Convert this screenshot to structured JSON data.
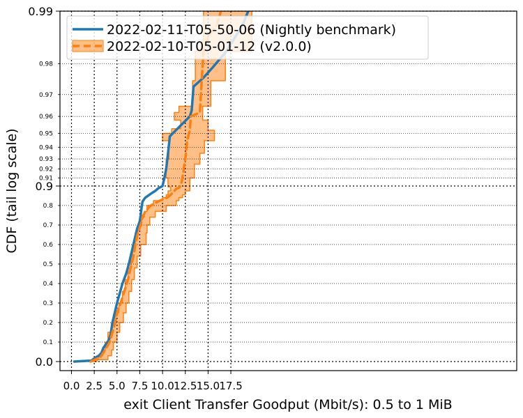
{
  "chart_data": {
    "type": "line",
    "xlabel": "exit Client Transfer Goodput (Mbit/s): 0.5 to 1 MiB",
    "ylabel": "CDF (tail log scale)",
    "xlim": [
      -0.4,
      19.8
    ],
    "x_ticks": [
      0.0,
      2.5,
      5.0,
      7.5,
      10.0,
      12.5,
      15.0,
      17.5
    ],
    "x_tick_labels": [
      "0.0",
      "2.5",
      "5.0",
      "7.5",
      "10.0",
      "12.5",
      "15.0",
      "17.5"
    ],
    "y_scale": "tail-log (linear below 0.9, logit-like above 0.9)",
    "ylim": [
      -0.02,
      0.99
    ],
    "y_major_ticks": [
      0.0,
      0.9,
      0.99
    ],
    "y_major_tick_labels": [
      "0.0",
      "0.9",
      "0.99"
    ],
    "y_minor_ticks": [
      0.1,
      0.2,
      0.3,
      0.4,
      0.5,
      0.6,
      0.7,
      0.8,
      0.91,
      0.92,
      0.93,
      0.94,
      0.95,
      0.96,
      0.97,
      0.98
    ],
    "y_minor_tick_labels": [
      "0.1",
      "0.2",
      "0.3",
      "0.4",
      "0.5",
      "0.6",
      "0.7",
      "0.8",
      "0.91",
      "0.92",
      "0.93",
      "0.94",
      "0.95",
      "0.96",
      "0.97",
      "0.98"
    ],
    "grid": "dotted, at x major ticks and all y ticks",
    "legend": "top-left",
    "series": [
      {
        "name": "2022-02-11-T05-50-06 (Nightly benchmark)",
        "color": "#1f77b4",
        "style": "solid",
        "points": [
          [
            0.3,
            0.0
          ],
          [
            2.2,
            0.005
          ],
          [
            2.6,
            0.02
          ],
          [
            3.0,
            0.03
          ],
          [
            3.3,
            0.045
          ],
          [
            3.5,
            0.07
          ],
          [
            3.8,
            0.09
          ],
          [
            4.1,
            0.11
          ],
          [
            4.3,
            0.14
          ],
          [
            4.5,
            0.2
          ],
          [
            4.7,
            0.24
          ],
          [
            5.0,
            0.3
          ],
          [
            5.3,
            0.35
          ],
          [
            5.6,
            0.4
          ],
          [
            6.0,
            0.45
          ],
          [
            6.3,
            0.5
          ],
          [
            6.6,
            0.56
          ],
          [
            6.8,
            0.6
          ],
          [
            7.0,
            0.64
          ],
          [
            7.2,
            0.68
          ],
          [
            7.5,
            0.72
          ],
          [
            7.6,
            0.75
          ],
          [
            7.7,
            0.79
          ],
          [
            7.8,
            0.82
          ],
          [
            8.1,
            0.84
          ],
          [
            8.7,
            0.86
          ],
          [
            9.2,
            0.875
          ],
          [
            9.5,
            0.887
          ],
          [
            9.8,
            0.895
          ],
          [
            10.0,
            0.9
          ],
          [
            10.2,
            0.91
          ],
          [
            10.4,
            0.92
          ],
          [
            10.6,
            0.935
          ],
          [
            10.8,
            0.948
          ],
          [
            12.0,
            0.955
          ],
          [
            13.0,
            0.96
          ],
          [
            13.2,
            0.963
          ],
          [
            13.4,
            0.973
          ],
          [
            14.5,
            0.976
          ],
          [
            15.5,
            0.979
          ],
          [
            17.0,
            0.983
          ],
          [
            18.0,
            0.986
          ],
          [
            18.8,
            0.988
          ],
          [
            19.4,
            0.99
          ]
        ]
      },
      {
        "name": "2022-02-10-T05-01-12 (v2.0.0)",
        "color": "#ff7f0e",
        "style": "dashed",
        "points": [
          [
            2.1,
            0.0
          ],
          [
            2.6,
            0.01
          ],
          [
            3.2,
            0.025
          ],
          [
            3.7,
            0.06
          ],
          [
            4.2,
            0.1
          ],
          [
            4.5,
            0.15
          ],
          [
            4.8,
            0.2
          ],
          [
            5.0,
            0.25
          ],
          [
            5.4,
            0.3
          ],
          [
            5.8,
            0.36
          ],
          [
            6.2,
            0.42
          ],
          [
            6.5,
            0.48
          ],
          [
            6.8,
            0.54
          ],
          [
            7.1,
            0.62
          ],
          [
            7.3,
            0.66
          ],
          [
            7.6,
            0.7
          ],
          [
            7.8,
            0.74
          ],
          [
            8.1,
            0.77
          ],
          [
            8.7,
            0.8
          ],
          [
            9.7,
            0.825
          ],
          [
            10.5,
            0.84
          ],
          [
            10.9,
            0.855
          ],
          [
            11.3,
            0.875
          ],
          [
            11.5,
            0.885
          ],
          [
            11.9,
            0.895
          ],
          [
            12.1,
            0.905
          ],
          [
            12.3,
            0.918
          ],
          [
            12.5,
            0.93
          ],
          [
            12.7,
            0.945
          ],
          [
            13.0,
            0.952
          ],
          [
            13.1,
            0.96
          ],
          [
            14.1,
            0.962
          ],
          [
            14.3,
            0.975
          ],
          [
            14.5,
            0.983
          ],
          [
            15.0,
            0.986
          ],
          [
            16.0,
            0.988
          ],
          [
            16.4,
            0.99
          ]
        ],
        "band": {
          "lower": [
            [
              2.0,
              0.0
            ],
            [
              2.3,
              0.01
            ],
            [
              3.0,
              0.03
            ],
            [
              3.4,
              0.06
            ],
            [
              3.7,
              0.1
            ],
            [
              4.0,
              0.15
            ],
            [
              4.4,
              0.2
            ],
            [
              4.8,
              0.25
            ],
            [
              5.2,
              0.3
            ],
            [
              5.6,
              0.36
            ],
            [
              5.9,
              0.42
            ],
            [
              6.2,
              0.48
            ],
            [
              6.5,
              0.54
            ],
            [
              6.7,
              0.6
            ],
            [
              7.0,
              0.66
            ],
            [
              7.3,
              0.7
            ],
            [
              7.7,
              0.74
            ],
            [
              8.0,
              0.77
            ],
            [
              8.3,
              0.8
            ],
            [
              9.0,
              0.825
            ],
            [
              10.0,
              0.84
            ],
            [
              10.4,
              0.855
            ],
            [
              10.6,
              0.875
            ],
            [
              10.9,
              0.895
            ],
            [
              10.6,
              0.91
            ],
            [
              10.4,
              0.93
            ],
            [
              10.7,
              0.945
            ],
            [
              10.0,
              0.95
            ],
            [
              11.0,
              0.953
            ],
            [
              12.0,
              0.958
            ],
            [
              11.3,
              0.962
            ],
            [
              11.8,
              0.965
            ],
            [
              13.3,
              0.975
            ],
            [
              13.6,
              0.983
            ],
            [
              14.2,
              0.985
            ],
            [
              14.5,
              0.99
            ]
          ],
          "upper": [
            [
              2.3,
              0.0
            ],
            [
              2.8,
              0.01
            ],
            [
              4.0,
              0.03
            ],
            [
              4.4,
              0.06
            ],
            [
              4.6,
              0.1
            ],
            [
              5.0,
              0.15
            ],
            [
              5.3,
              0.2
            ],
            [
              5.7,
              0.25
            ],
            [
              6.0,
              0.3
            ],
            [
              6.3,
              0.36
            ],
            [
              6.6,
              0.42
            ],
            [
              6.9,
              0.48
            ],
            [
              7.2,
              0.54
            ],
            [
              7.6,
              0.6
            ],
            [
              8.2,
              0.66
            ],
            [
              8.3,
              0.7
            ],
            [
              8.6,
              0.74
            ],
            [
              9.2,
              0.77
            ],
            [
              10.4,
              0.8
            ],
            [
              11.5,
              0.825
            ],
            [
              11.8,
              0.84
            ],
            [
              12.2,
              0.855
            ],
            [
              12.5,
              0.875
            ],
            [
              13.0,
              0.895
            ],
            [
              13.0,
              0.91
            ],
            [
              13.5,
              0.925
            ],
            [
              14.1,
              0.935
            ],
            [
              14.6,
              0.945
            ],
            [
              15.7,
              0.952
            ],
            [
              15.0,
              0.958
            ],
            [
              14.4,
              0.965
            ],
            [
              15.3,
              0.975
            ],
            [
              16.9,
              0.978
            ],
            [
              16.9,
              0.983
            ],
            [
              19.8,
              0.986
            ],
            [
              19.8,
              0.99
            ]
          ]
        }
      }
    ]
  }
}
